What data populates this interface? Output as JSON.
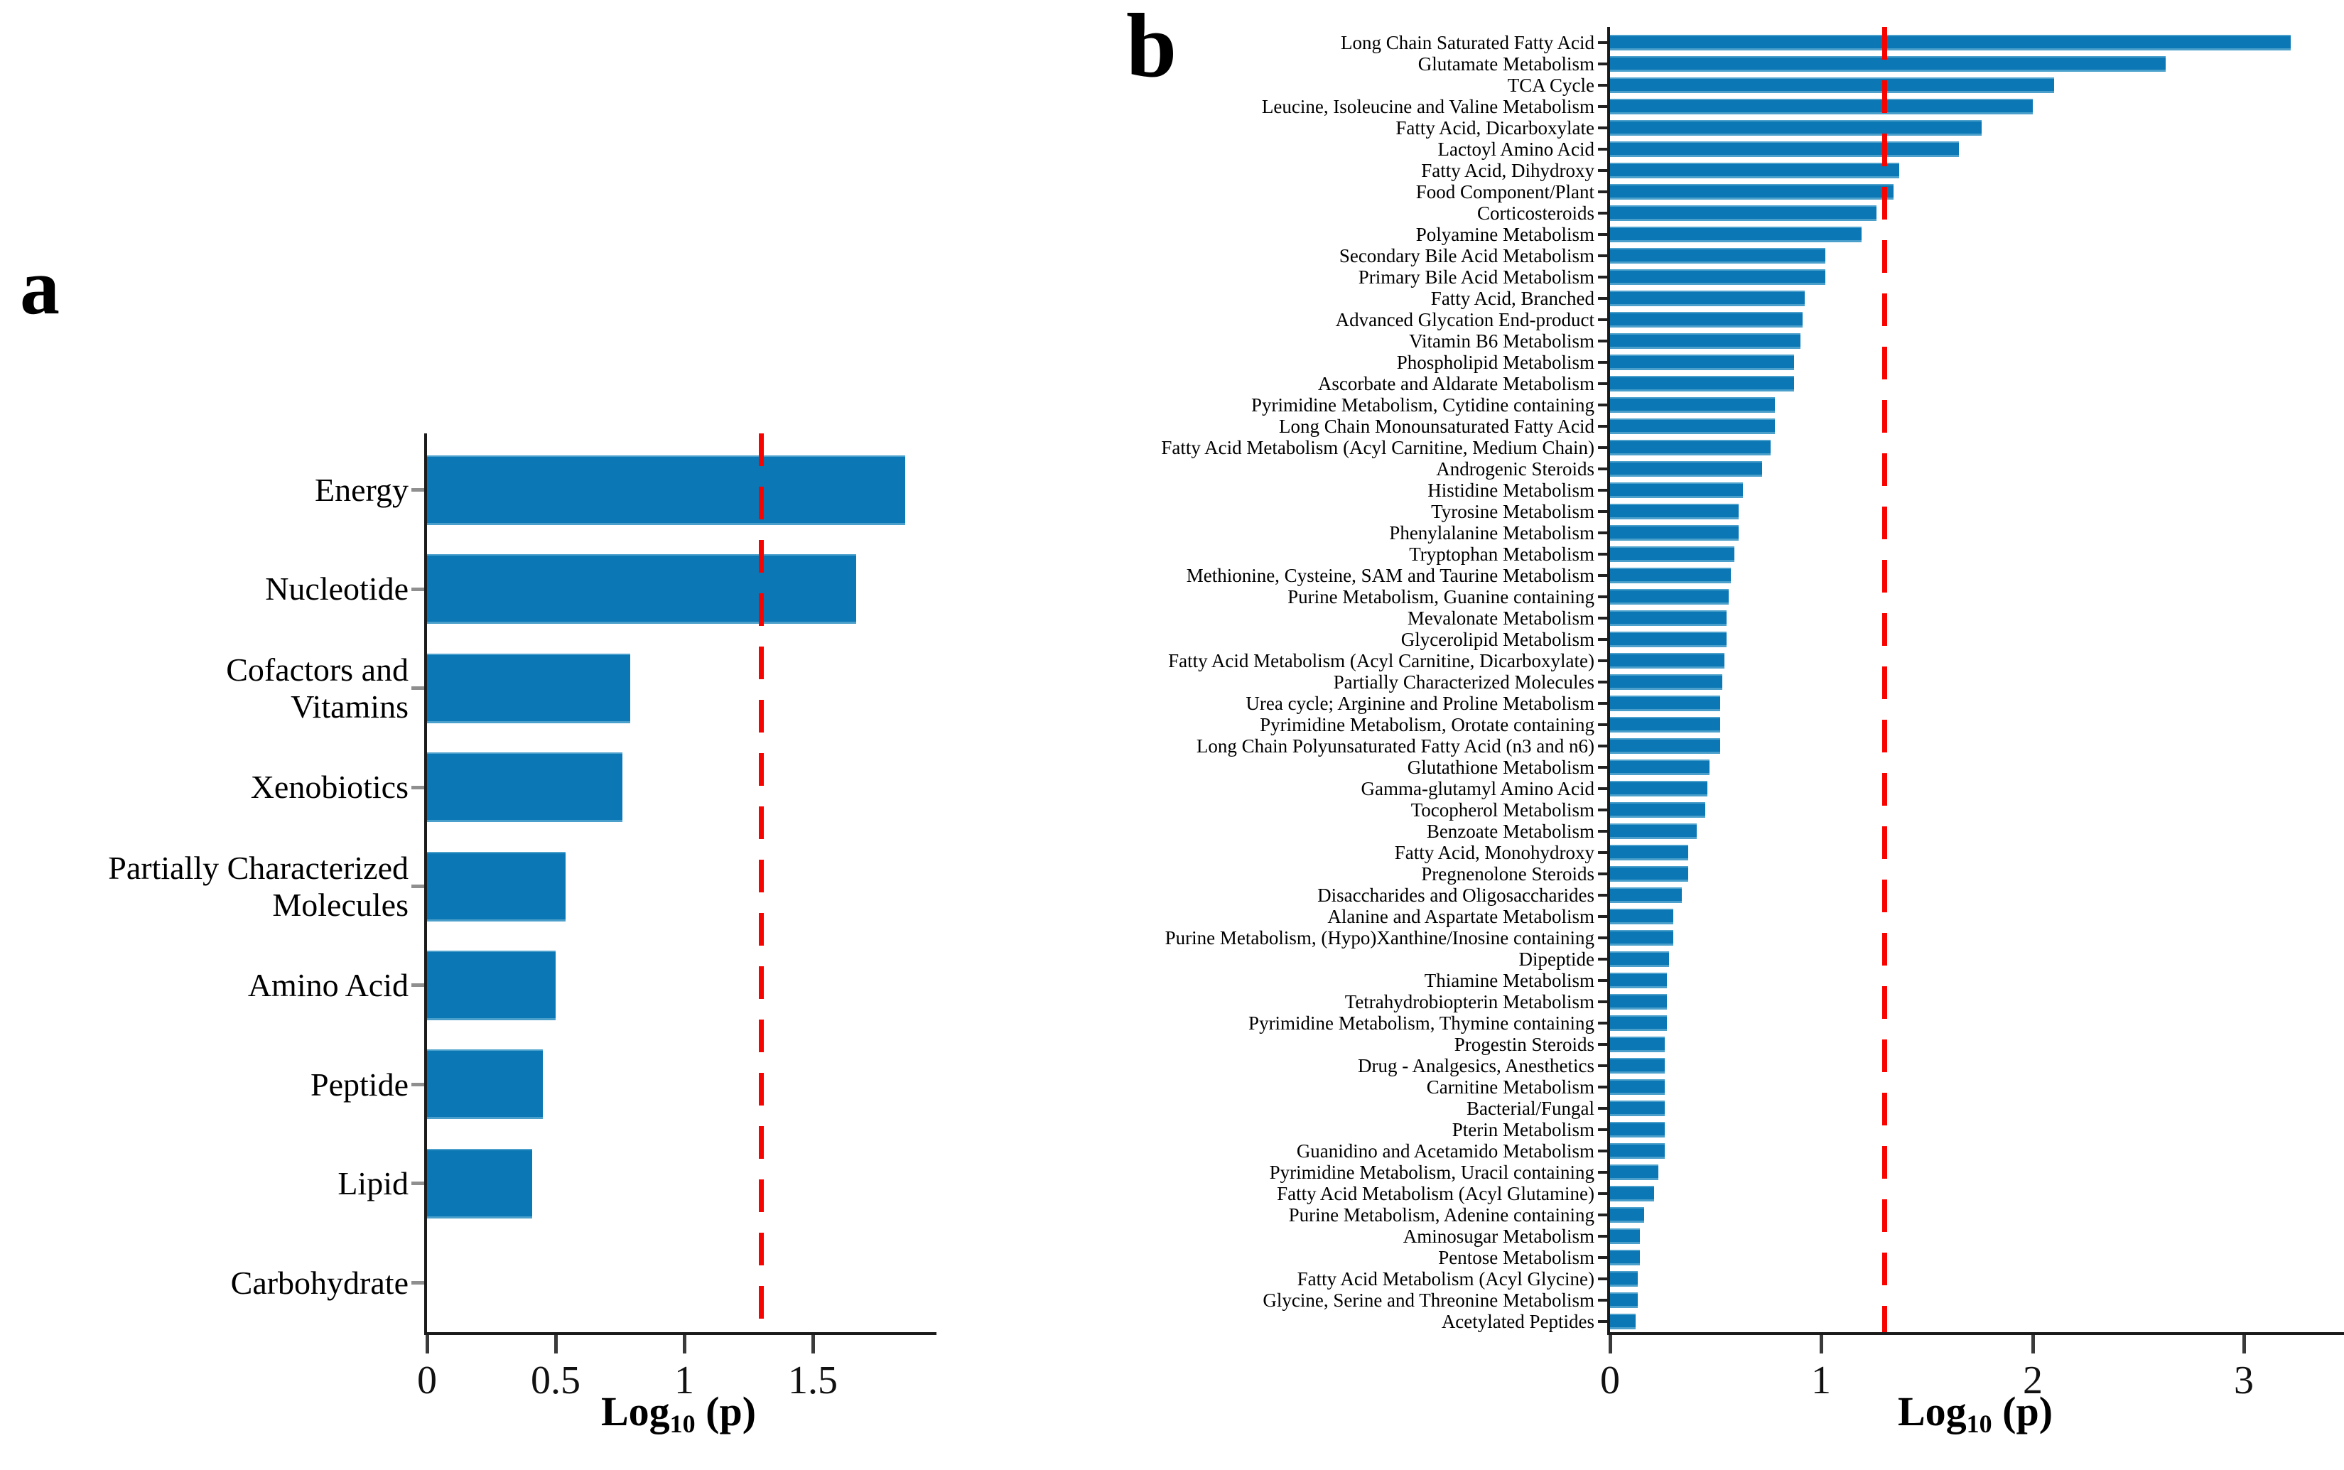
{
  "figure": {
    "background": "#ffffff",
    "bar_color": "#0b77b4",
    "bar_edge_highlight": "#4aa0cb",
    "threshold_color": "#f80400",
    "axis_color": "#1b1b1b",
    "ytick_color_panel_a": "#8f8f8f",
    "ytick_color_panel_b": "#222222"
  },
  "chart_data": [
    {
      "panel_letter": "a",
      "type": "bar",
      "orientation": "horizontal",
      "title": "",
      "xlabel": "Log10 (p)",
      "xlabel_parts": {
        "main": "Log",
        "sub": "10",
        "rest": " (p)"
      },
      "x_max": 1.96,
      "xlim": [
        0,
        1.96
      ],
      "grid": false,
      "legend": null,
      "threshold_x": 1.3,
      "x_ticks": [
        {
          "value": 0,
          "label": "0"
        },
        {
          "value": 0.5,
          "label": "0.5"
        },
        {
          "value": 1,
          "label": "1"
        },
        {
          "value": 1.5,
          "label": "1.5"
        }
      ],
      "categories": [
        "Energy",
        "Nucleotide",
        "Cofactors and\nVitamins",
        "Xenobiotics",
        "Partially Characterized\nMolecules",
        "Amino Acid",
        "Peptide",
        "Lipid",
        "Carbohydrate"
      ],
      "values": [
        1.86,
        1.67,
        0.79,
        0.76,
        0.54,
        0.5,
        0.45,
        0.41,
        0
      ]
    },
    {
      "panel_letter": "b",
      "type": "bar",
      "orientation": "horizontal",
      "title": "",
      "xlabel": "Log10 (p)",
      "xlabel_parts": {
        "main": "Log",
        "sub": "10",
        "rest": " (p)"
      },
      "x_max": 3.46,
      "xlim": [
        0,
        3.46
      ],
      "grid": false,
      "legend": null,
      "threshold_x": 1.3,
      "x_ticks": [
        {
          "value": 0,
          "label": "0"
        },
        {
          "value": 1,
          "label": "1"
        },
        {
          "value": 2,
          "label": "2"
        },
        {
          "value": 3,
          "label": "3"
        }
      ],
      "categories": [
        "Long Chain Saturated Fatty Acid",
        "Glutamate Metabolism",
        "TCA Cycle",
        "Leucine, Isoleucine and Valine Metabolism",
        "Fatty Acid, Dicarboxylate",
        "Lactoyl Amino Acid",
        "Fatty Acid, Dihydroxy",
        "Food Component/Plant",
        "Corticosteroids",
        "Polyamine Metabolism",
        "Secondary Bile Acid Metabolism",
        "Primary Bile Acid Metabolism",
        "Fatty Acid, Branched",
        "Advanced Glycation End-product",
        "Vitamin B6 Metabolism",
        "Phospholipid Metabolism",
        "Ascorbate and Aldarate Metabolism",
        "Pyrimidine Metabolism, Cytidine containing",
        "Long Chain Monounsaturated Fatty Acid",
        "Fatty Acid Metabolism (Acyl Carnitine, Medium Chain)",
        "Androgenic Steroids",
        "Histidine Metabolism",
        "Tyrosine Metabolism",
        "Phenylalanine Metabolism",
        "Tryptophan Metabolism",
        "Methionine, Cysteine, SAM and Taurine Metabolism",
        "Purine Metabolism, Guanine containing",
        "Mevalonate Metabolism",
        "Glycerolipid Metabolism",
        "Fatty Acid Metabolism (Acyl Carnitine, Dicarboxylate)",
        "Partially Characterized Molecules",
        "Urea cycle; Arginine and Proline Metabolism",
        "Pyrimidine Metabolism, Orotate containing",
        "Long Chain Polyunsaturated Fatty Acid (n3 and n6)",
        "Glutathione Metabolism",
        "Gamma-glutamyl Amino Acid",
        "Tocopherol Metabolism",
        "Benzoate Metabolism",
        "Fatty Acid, Monohydroxy",
        "Pregnenolone Steroids",
        "Disaccharides and Oligosaccharides",
        "Alanine and Aspartate Metabolism",
        "Purine Metabolism, (Hypo)Xanthine/Inosine containing",
        "Dipeptide",
        "Thiamine Metabolism",
        "Tetrahydrobiopterin Metabolism",
        "Pyrimidine Metabolism, Thymine containing",
        "Progestin Steroids",
        "Drug - Analgesics, Anesthetics",
        "Carnitine Metabolism",
        "Bacterial/Fungal",
        "Pterin Metabolism",
        "Guanidino and Acetamido Metabolism",
        "Pyrimidine Metabolism, Uracil containing",
        "Fatty Acid Metabolism (Acyl Glutamine)",
        "Purine Metabolism, Adenine containing",
        "Aminosugar Metabolism",
        "Pentose Metabolism",
        "Fatty Acid Metabolism (Acyl Glycine)",
        "Glycine, Serine and Threonine Metabolism",
        "Acetylated Peptides"
      ],
      "values": [
        3.22,
        2.63,
        2.1,
        2.0,
        1.76,
        1.65,
        1.37,
        1.34,
        1.26,
        1.19,
        1.02,
        1.02,
        0.92,
        0.91,
        0.9,
        0.87,
        0.87,
        0.78,
        0.78,
        0.76,
        0.72,
        0.63,
        0.61,
        0.61,
        0.59,
        0.57,
        0.56,
        0.55,
        0.55,
        0.54,
        0.53,
        0.52,
        0.52,
        0.52,
        0.47,
        0.46,
        0.45,
        0.41,
        0.37,
        0.37,
        0.34,
        0.3,
        0.3,
        0.28,
        0.27,
        0.27,
        0.27,
        0.26,
        0.26,
        0.26,
        0.26,
        0.26,
        0.26,
        0.23,
        0.21,
        0.16,
        0.14,
        0.14,
        0.13,
        0.13,
        0.12
      ]
    }
  ]
}
